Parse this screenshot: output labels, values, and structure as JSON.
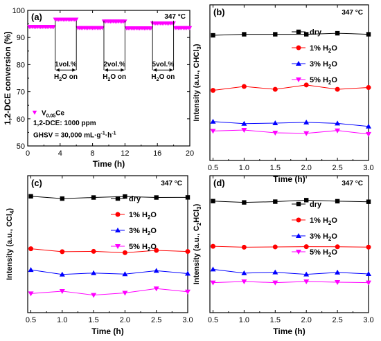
{
  "chart_data": [
    {
      "panel": "(a)",
      "type": "scatter",
      "temperature": "347 °C",
      "ylabel": "1,2-DCE conversion (%)",
      "xlabel": "Time (h)",
      "xlim": [
        0,
        20
      ],
      "ylim": [
        50,
        100
      ],
      "xticks": [
        "0",
        "4",
        "8",
        "12",
        "16",
        "20"
      ],
      "xtick_values": [
        0,
        4,
        8,
        12,
        16,
        20
      ],
      "yticks": [
        "50",
        "60",
        "70",
        "80",
        "90",
        "100"
      ],
      "ytick_values": [
        50,
        60,
        70,
        80,
        90,
        100
      ],
      "marker_color": "#ff00ff",
      "legend_label": "V0.05Ce",
      "legend_main": "V",
      "legend_sub": "0.05",
      "legend_tail": "Ce",
      "info_lines": [
        "1,2-DCE: 1000 ppm"
      ],
      "ghsv_prefix": "GHSV = 30,000 mL·g",
      "ghsv_sup1": "-1",
      "ghsv_mid": "·h",
      "ghsv_sup2": "-1",
      "segments": [
        {
          "x_start": 0.2,
          "x_end": 3.2,
          "y": 94.0,
          "water": false
        },
        {
          "x_start": 3.4,
          "x_end": 6.0,
          "y": 96.7,
          "water": true
        },
        {
          "x_start": 6.2,
          "x_end": 9.2,
          "y": 93.6,
          "water": false
        },
        {
          "x_start": 9.4,
          "x_end": 12.0,
          "y": 96.0,
          "water": true
        },
        {
          "x_start": 12.2,
          "x_end": 15.2,
          "y": 93.5,
          "water": false
        },
        {
          "x_start": 15.4,
          "x_end": 18.0,
          "y": 95.3,
          "water": true
        },
        {
          "x_start": 18.2,
          "x_end": 20.0,
          "y": 93.6,
          "water": false
        }
      ],
      "annotations": [
        {
          "label": "1vol.%",
          "x_start": 3.4,
          "x_end": 6.0
        },
        {
          "label": "2vol.%",
          "x_start": 9.4,
          "x_end": 12.0
        },
        {
          "label": "5vol.%",
          "x_start": 15.4,
          "x_end": 18.0
        }
      ],
      "h2o_on_main": "H",
      "h2o_on_sub": "2",
      "h2o_on_tail": "O on"
    },
    {
      "panel": "(b)",
      "type": "line",
      "temperature": "347 °C",
      "ylabel_main": "Intensity (a.u., CHCl",
      "ylabel_sub": "3",
      "ylabel_tail": ")",
      "xlabel": "Time (h)",
      "x": [
        0.5,
        1.0,
        1.5,
        2.0,
        2.5,
        3.0
      ],
      "xticks": [
        "0.5",
        "1.0",
        "1.5",
        "2.0",
        "2.5",
        "3.0"
      ],
      "xlim": [
        0.45,
        3.0
      ],
      "ylim": [
        0,
        100
      ],
      "series": [
        {
          "name": "dry",
          "color": "#000000",
          "marker": "square",
          "values": [
            87,
            87.8,
            87.8,
            87.8,
            88.6,
            87.8
          ]
        },
        {
          "name": "1% H2O",
          "color": "#ff0000",
          "marker": "circle",
          "values": [
            44,
            47,
            44.8,
            48.2,
            44.8,
            46.2
          ]
        },
        {
          "name": "3% H2O",
          "color": "#0000ff",
          "marker": "triangle-up",
          "values": [
            19.6,
            18,
            18.4,
            19,
            18.2,
            15.8
          ]
        },
        {
          "name": "5% H2O",
          "color": "#ff00ff",
          "marker": "triangle-down",
          "values": [
            12.2,
            13,
            10.8,
            10.4,
            12.6,
            9.8
          ]
        }
      ]
    },
    {
      "panel": "(c)",
      "type": "line",
      "temperature": "347 °C",
      "ylabel_main": "Intensity (a.u., CCl",
      "ylabel_sub": "4",
      "ylabel_tail": ")",
      "xlabel": "Time (h)",
      "x": [
        0.5,
        1.0,
        1.5,
        2.0,
        2.5,
        3.0
      ],
      "xticks": [
        "0.5",
        "1.0",
        "1.5",
        "2.0",
        "2.5",
        "3.0"
      ],
      "xlim": [
        0.45,
        3.0
      ],
      "ylim": [
        0,
        100
      ],
      "series": [
        {
          "name": "dry",
          "color": "#000000",
          "marker": "square",
          "values": [
            93.8,
            91.7,
            92.7,
            93.6,
            92.7,
            92.8
          ]
        },
        {
          "name": "1% H2O",
          "color": "#ff0000",
          "marker": "circle",
          "values": [
            45.8,
            43.1,
            43.4,
            42.2,
            44.3,
            43.3
          ]
        },
        {
          "name": "3% H2O",
          "color": "#0000ff",
          "marker": "triangle-up",
          "values": [
            26.5,
            22.3,
            23.6,
            22.6,
            25.7,
            23.1
          ]
        },
        {
          "name": "5% H2O",
          "color": "#ff00ff",
          "marker": "triangle-down",
          "values": [
            4.8,
            7.0,
            3.4,
            5.4,
            9.3,
            6.5
          ]
        }
      ]
    },
    {
      "panel": "(d)",
      "type": "line",
      "temperature": "347 °C",
      "ylabel_main": "Intensity (a.u., C",
      "ylabel_sub": "2",
      "ylabel_mid": "HCl",
      "ylabel_sub2": "3",
      "ylabel_tail": ")",
      "xlabel": "Time (h)",
      "x": [
        0.5,
        1.0,
        1.5,
        2.0,
        2.5,
        3.0
      ],
      "xticks": [
        "0.5",
        "1.0",
        "1.5",
        "2.0",
        "2.5",
        "3.0"
      ],
      "xlim": [
        0.45,
        3.0
      ],
      "ylim": [
        0,
        100
      ],
      "series": [
        {
          "name": "dry",
          "color": "#000000",
          "marker": "square",
          "values": [
            89.4,
            88.2,
            88.9,
            90.3,
            89.3,
            88.8
          ]
        },
        {
          "name": "1% H2O",
          "color": "#ff0000",
          "marker": "circle",
          "values": [
            48.0,
            47.2,
            47.5,
            47.7,
            47.6,
            47.3
          ]
        },
        {
          "name": "3% H2O",
          "color": "#0000ff",
          "marker": "triangle-up",
          "values": [
            27.0,
            23.5,
            24.3,
            22.4,
            24.1,
            22.8
          ]
        },
        {
          "name": "5% H2O",
          "color": "#ff00ff",
          "marker": "triangle-down",
          "values": [
            14.8,
            15.8,
            14.8,
            15.8,
            15.2,
            14.8
          ]
        }
      ]
    }
  ]
}
